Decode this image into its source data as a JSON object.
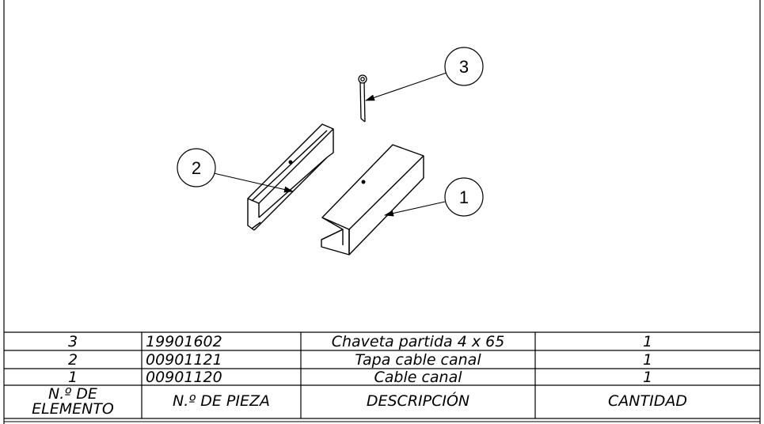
{
  "balloons": [
    {
      "number": "3"
    },
    {
      "number": "2"
    },
    {
      "number": "1"
    }
  ],
  "bom": {
    "rows": [
      {
        "item": "3",
        "part": "19901602",
        "description": "Chaveta partida 4 x 65",
        "qty": "1"
      },
      {
        "item": "2",
        "part": "00901121",
        "description": "Tapa cable canal",
        "qty": "1"
      },
      {
        "item": "1",
        "part": "00901120",
        "description": "Cable canal",
        "qty": "1"
      }
    ],
    "headers": {
      "item_line1": "N.º DE",
      "item_line2": "ELEMENTO",
      "part": "N.º DE PIEZA",
      "description": "DESCRIPCIÓN",
      "qty": "CANTIDAD"
    }
  }
}
